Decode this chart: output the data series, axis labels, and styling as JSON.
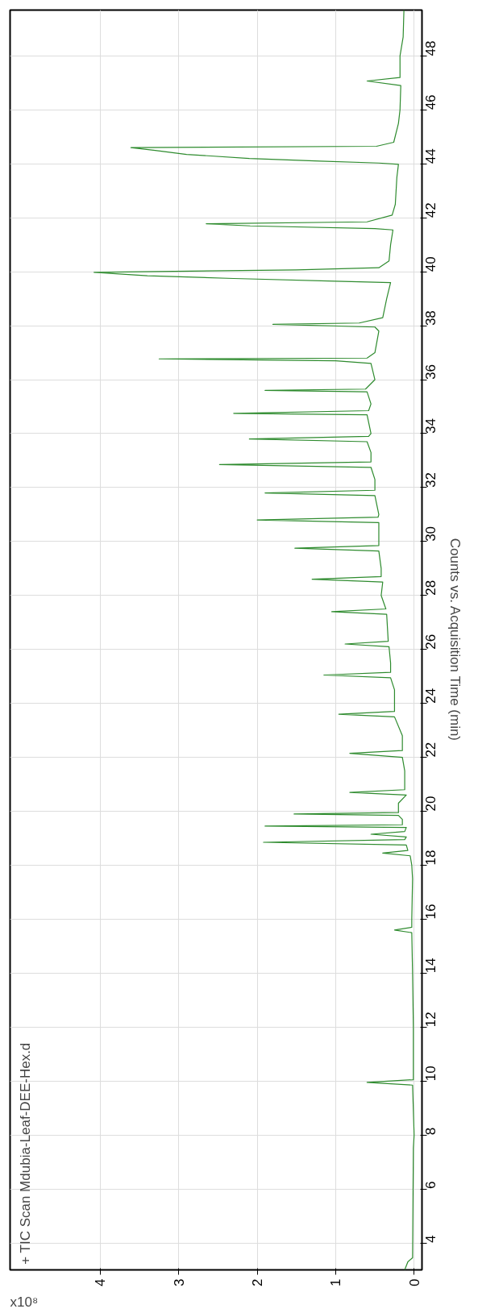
{
  "chart_data": {
    "type": "line",
    "title": "+ TIC Scan Mdubia-Leaf-DEE-Hex.d",
    "ylabel": "Counts vs. Acquisition Time (min)",
    "xlabel": "x10⁸",
    "ylim": [
      3.0,
      49.7
    ],
    "xlim": [
      5.15,
      -0.1
    ],
    "yticks": [
      4,
      6,
      8,
      10,
      12,
      14,
      16,
      18,
      20,
      22,
      24,
      26,
      28,
      30,
      32,
      34,
      36,
      38,
      40,
      42,
      44,
      46,
      48
    ],
    "xticks": [
      0,
      1,
      2,
      3,
      4
    ],
    "grid": true,
    "marker": "none",
    "line_style": "solid",
    "series": [
      {
        "color": "#2e8b2e",
        "values": [
          3.0,
          3.3,
          3.45,
          7.5,
          8,
          9.85,
          9.95,
          10.05,
          12,
          14,
          15.5,
          15.6,
          15.7,
          16,
          17.5,
          18,
          18.35,
          18.45,
          18.55,
          18.75,
          18.85,
          18.95,
          19.05,
          19.15,
          19.25,
          19.4,
          19.45,
          19.5,
          19.7,
          19.85,
          19.9,
          19.95,
          20.3,
          20.6,
          20.7,
          20.8,
          21.5,
          22.0,
          22.15,
          22.25,
          22.8,
          23.5,
          23.6,
          23.7,
          24.5,
          24.95,
          25.05,
          25.15,
          25.5,
          26.1,
          26.2,
          26.3,
          27.3,
          27.4,
          27.5,
          28,
          28.5,
          28.6,
          28.7,
          29,
          29.65,
          29.75,
          29.85,
          30,
          30.7,
          30.8,
          30.9,
          31,
          31.7,
          31.8,
          31.9,
          32.3,
          32.75,
          32.85,
          32.95,
          33.3,
          33.7,
          33.8,
          33.9,
          34,
          34.7,
          34.75,
          34.85,
          35.1,
          35.55,
          35.6,
          35.65,
          36,
          36.6,
          36.7,
          36.77,
          36.8,
          37,
          37.8,
          37.95,
          38.05,
          38.1,
          38.3,
          39,
          39.6,
          39.65,
          39.75,
          39.85,
          39.98,
          40.07,
          40.15,
          40.4,
          41,
          41.55,
          41.6,
          41.7,
          41.78,
          41.85,
          42.1,
          42.5,
          43.5,
          43.98,
          44.03,
          44.1,
          44.2,
          44.35,
          44.5,
          44.6,
          44.65,
          44.8,
          45.5,
          46,
          46.9,
          47.07,
          47.2,
          48,
          48.7,
          49.7
        ],
        "x": [
          0.12,
          0.08,
          0.02,
          0.01,
          0.0,
          0.02,
          0.6,
          0.01,
          0.01,
          0.02,
          0.03,
          0.25,
          0.03,
          0.03,
          0.02,
          0.03,
          0.05,
          0.4,
          0.08,
          0.1,
          1.92,
          0.12,
          0.1,
          0.55,
          0.12,
          0.1,
          1.9,
          0.15,
          0.15,
          0.2,
          1.53,
          0.2,
          0.2,
          0.1,
          0.82,
          0.12,
          0.12,
          0.15,
          0.82,
          0.15,
          0.15,
          0.25,
          0.96,
          0.25,
          0.25,
          0.3,
          1.15,
          0.3,
          0.3,
          0.32,
          0.88,
          0.33,
          0.35,
          1.05,
          0.36,
          0.42,
          0.4,
          1.3,
          0.42,
          0.42,
          0.45,
          1.52,
          0.45,
          0.45,
          0.45,
          2.0,
          0.46,
          0.45,
          0.5,
          1.9,
          0.5,
          0.5,
          0.55,
          2.48,
          0.55,
          0.55,
          0.6,
          2.1,
          0.58,
          0.55,
          0.6,
          2.3,
          0.58,
          0.55,
          0.6,
          1.9,
          0.62,
          0.5,
          0.55,
          1.0,
          3.25,
          0.6,
          0.5,
          0.45,
          0.5,
          1.8,
          0.7,
          0.4,
          0.35,
          0.3,
          1.0,
          2.3,
          3.4,
          4.08,
          1.5,
          0.45,
          0.32,
          0.3,
          0.27,
          0.5,
          2.09,
          2.65,
          0.6,
          0.28,
          0.24,
          0.22,
          0.2,
          0.45,
          1.2,
          2.1,
          2.9,
          3.3,
          3.61,
          0.48,
          0.26,
          0.2,
          0.18,
          0.17,
          0.6,
          0.18,
          0.18,
          0.14,
          0.13
        ]
      }
    ]
  }
}
